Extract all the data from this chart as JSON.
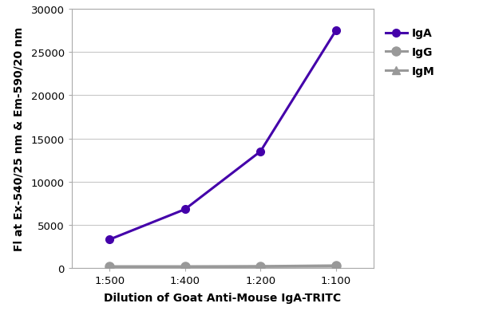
{
  "x_labels": [
    "1:500",
    "1:400",
    "1:200",
    "1:100"
  ],
  "x_positions": [
    1,
    2,
    3,
    4
  ],
  "IgA_values": [
    3300,
    6800,
    13500,
    27500
  ],
  "IgG_values": [
    180,
    180,
    200,
    280
  ],
  "IgM_values": [
    120,
    120,
    150,
    180
  ],
  "IgA_color": "#4400aa",
  "IgG_color": "#999999",
  "IgM_color": "#999999",
  "IgA_marker": "o",
  "IgG_marker": "o",
  "IgM_marker": "^",
  "ylabel": "Fl at Ex-540/25 nm & Em-590/20 nm",
  "xlabel": "Dilution of Goat Anti-Mouse IgA-TRITC",
  "ylim": [
    0,
    30000
  ],
  "yticks": [
    0,
    5000,
    10000,
    15000,
    20000,
    25000,
    30000
  ],
  "background_color": "#ffffff",
  "grid_color": "#c8c8c8",
  "label_fontsize": 10,
  "tick_fontsize": 9.5,
  "legend_fontsize": 10,
  "line_width": 2.2,
  "IgA_marker_size": 7,
  "IgG_marker_size": 8,
  "IgM_marker_size": 7
}
